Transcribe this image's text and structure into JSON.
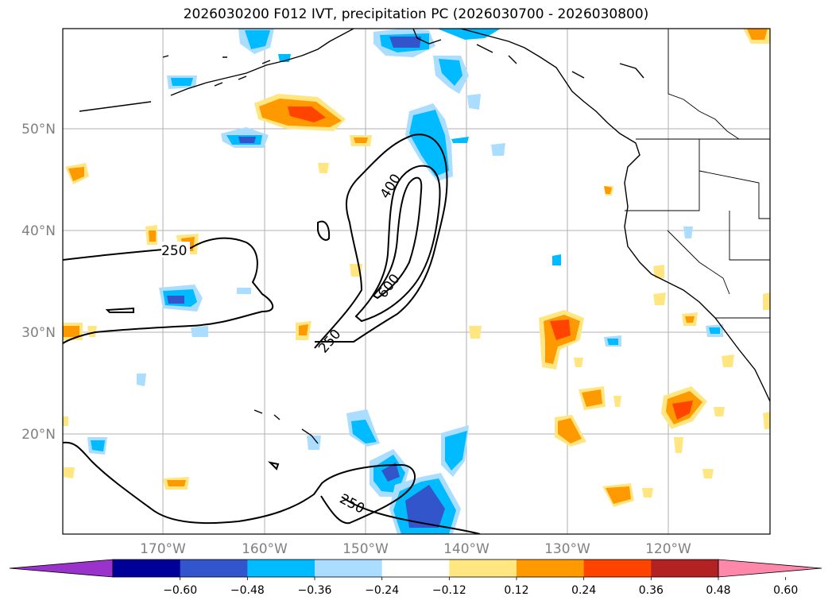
{
  "title": "2026030200 F012 IVT, precipitation PC (2026030700 - 2026030800)",
  "lat_labels": [
    "50°N",
    "40°N",
    "30°N",
    "20°N"
  ],
  "lon_labels": [
    "170°W",
    "160°W",
    "150°W",
    "140°W",
    "130°W",
    "120°W"
  ],
  "contour_labels": [
    "250",
    "400",
    "600",
    "250",
    "250"
  ],
  "colorbar": {
    "colors": [
      "#9933cc",
      "#000099",
      "#3355cc",
      "#00bbff",
      "#aaddff",
      "#ffffff",
      "#ffe680",
      "#ff9900",
      "#ff4400",
      "#b22222",
      "#ff88aa"
    ],
    "ticks": [
      "−0.60",
      "−0.48",
      "−0.36",
      "−0.24",
      "−0.12",
      "0.12",
      "0.24",
      "0.36",
      "0.48",
      "0.60"
    ]
  },
  "palette": {
    "land_line": "#000000",
    "grid": "#b0b0b0",
    "tick_color": "#808080"
  }
}
